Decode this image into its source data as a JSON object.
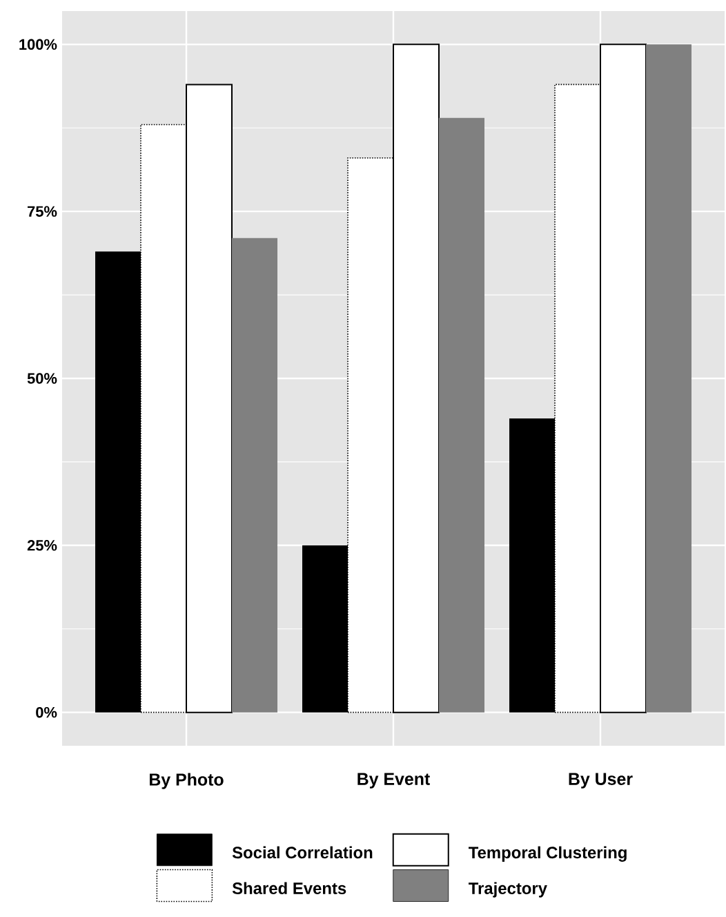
{
  "chart_data": {
    "type": "bar",
    "categories": [
      "By Photo",
      "By Event",
      "By User"
    ],
    "series": [
      {
        "name": "Social Correlation",
        "color": "#000000",
        "values": [
          69,
          25,
          44
        ]
      },
      {
        "name": "Shared Events",
        "color": "#ffffff",
        "values": [
          88,
          83,
          94
        ]
      },
      {
        "name": "Temporal Clustering",
        "color": "#ffffff",
        "values": [
          94,
          100,
          100
        ]
      },
      {
        "name": "Trajectory",
        "color": "#808080",
        "values": [
          71,
          89,
          100
        ]
      }
    ],
    "ylim": [
      -5,
      105
    ],
    "yticks": [
      {
        "value": 0,
        "label": "0%"
      },
      {
        "value": 25,
        "label": "25%"
      },
      {
        "value": 50,
        "label": "50%"
      },
      {
        "value": 75,
        "label": "75%"
      },
      {
        "value": 100,
        "label": "100%"
      }
    ],
    "grid": true,
    "legend": "bottom"
  }
}
